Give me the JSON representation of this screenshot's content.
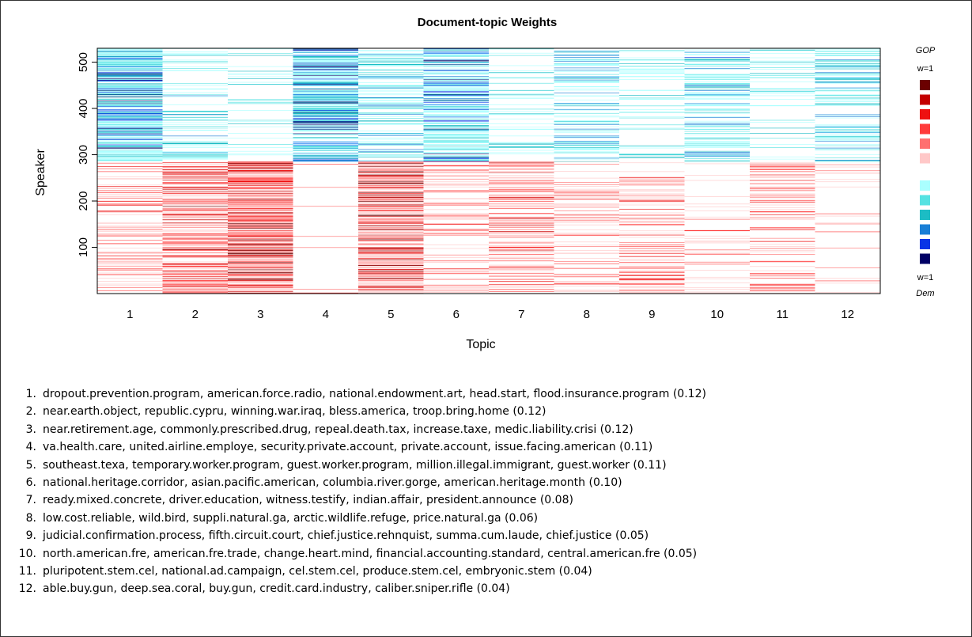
{
  "chart_data": {
    "type": "heatmap",
    "title": "Document-topic Weights",
    "xlabel": "Topic",
    "ylabel": "Speaker",
    "x_ticks": [
      "1",
      "2",
      "3",
      "4",
      "5",
      "6",
      "7",
      "8",
      "9",
      "10",
      "11",
      "12"
    ],
    "y_ticks": [
      100,
      200,
      300,
      400,
      500
    ],
    "ylim": [
      0,
      530
    ],
    "grid": false,
    "legend": {
      "position": "right",
      "top_label": "GOP",
      "top_weight": "w=1",
      "bottom_weight": "w=1",
      "bottom_label": "Dem",
      "gop_colors": [
        "#6b0000",
        "#c40000",
        "#ee1111",
        "#ff3b3b",
        "#ff7070",
        "#ffc8c8"
      ],
      "dem_colors": [
        "#aaffff",
        "#55e2e2",
        "#1cbcc4",
        "#1a7fd6",
        "#0a35e6",
        "#000066"
      ]
    },
    "party_split_speaker": 285,
    "gop_speaker_range": [
      1,
      285
    ],
    "dem_speaker_range": [
      285,
      530
    ],
    "column_density": {
      "gop": [
        0.3,
        0.55,
        0.85,
        0.05,
        0.7,
        0.2,
        0.4,
        0.2,
        0.25,
        0.12,
        0.3,
        0.08
      ],
      "dem": [
        0.75,
        0.25,
        0.1,
        0.7,
        0.3,
        0.6,
        0.15,
        0.35,
        0.15,
        0.35,
        0.15,
        0.3
      ]
    }
  },
  "topics": [
    {
      "num": "1.",
      "text": "dropout.prevention.program, american.force.radio, national.endowment.art, head.start, flood.insurance.program (0.12)"
    },
    {
      "num": "2.",
      "text": "near.earth.object, republic.cypru, winning.war.iraq, bless.america, troop.bring.home (0.12)"
    },
    {
      "num": "3.",
      "text": "near.retirement.age, commonly.prescribed.drug, repeal.death.tax, increase.taxe, medic.liability.crisi (0.12)"
    },
    {
      "num": "4.",
      "text": "va.health.care, united.airline.employe, security.private.account, private.account, issue.facing.american (0.11)"
    },
    {
      "num": "5.",
      "text": "southeast.texa, temporary.worker.program, guest.worker.program, million.illegal.immigrant, guest.worker (0.11)"
    },
    {
      "num": "6.",
      "text": "national.heritage.corridor, asian.pacific.american, columbia.river.gorge, american.heritage.month (0.10)"
    },
    {
      "num": "7.",
      "text": "ready.mixed.concrete, driver.education, witness.testify, indian.affair, president.announce (0.08)"
    },
    {
      "num": "8.",
      "text": "low.cost.reliable, wild.bird, suppli.natural.ga, arctic.wildlife.refuge, price.natural.ga (0.06)"
    },
    {
      "num": "9.",
      "text": "judicial.confirmation.process, fifth.circuit.court, chief.justice.rehnquist, summa.cum.laude, chief.justice (0.05)"
    },
    {
      "num": "10.",
      "text": "north.american.fre, american.fre.trade, change.heart.mind, financial.accounting.standard, central.american.fre (0.05)"
    },
    {
      "num": "11.",
      "text": "pluripotent.stem.cel, national.ad.campaign, cel.stem.cel, produce.stem.cel, embryonic.stem (0.04)"
    },
    {
      "num": "12.",
      "text": "able.buy.gun, deep.sea.coral, buy.gun, credit.card.industry, caliber.sniper.rifle (0.04)"
    }
  ]
}
